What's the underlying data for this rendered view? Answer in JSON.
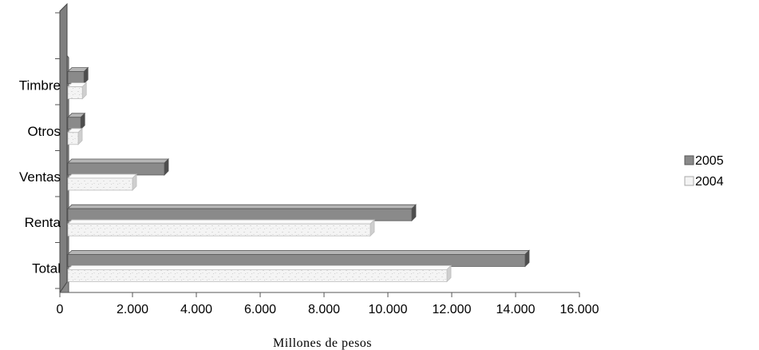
{
  "chart_data": {
    "type": "bar",
    "orientation": "horizontal",
    "categories": [
      "Total",
      "Renta",
      "Ventas",
      "Otros",
      "Timbre"
    ],
    "series": [
      {
        "name": "2005",
        "values": [
          14300,
          10750,
          3000,
          380,
          480
        ]
      },
      {
        "name": "2004",
        "values": [
          11850,
          9450,
          2000,
          300,
          430
        ]
      }
    ],
    "xlabel": "Millones de pesos",
    "ylabel": "",
    "xlim": [
      0,
      16000
    ],
    "xticks": [
      "0",
      "2.000",
      "4.000",
      "6.000",
      "8.000",
      "10.000",
      "12.000",
      "14.000",
      "16.000"
    ],
    "grid": false,
    "legend": "right",
    "colors": {
      "2005": "#8c8c8c",
      "2004": "#f2f2f2"
    }
  }
}
